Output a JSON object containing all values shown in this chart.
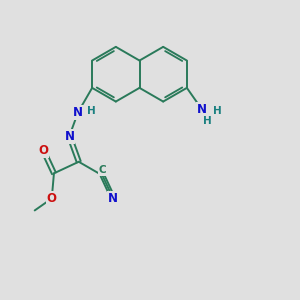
{
  "background_color": "#e0e0e0",
  "bond_color": "#2a7a5a",
  "bond_color_dark": "#1a5a3a",
  "atom_colors": {
    "N": "#1010cc",
    "O": "#cc1010",
    "C": "#2a7a5a",
    "H": "#1a8080"
  },
  "figsize": [
    3.0,
    3.0
  ],
  "dpi": 100,
  "xlim": [
    0,
    10
  ],
  "ylim": [
    0,
    10
  ]
}
